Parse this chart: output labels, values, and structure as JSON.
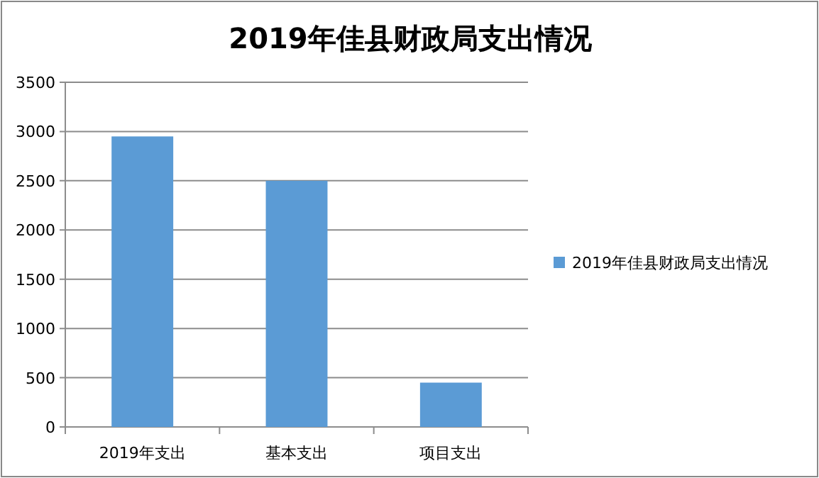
{
  "chart_data": {
    "type": "bar",
    "title": "2019年佳县财政局支出情况",
    "categories": [
      "2019年支出",
      "基本支出",
      "项目支出"
    ],
    "series": [
      {
        "name": "2019年佳县财政局支出情况",
        "color": "#5b9bd5",
        "values": [
          2950,
          2500,
          450
        ]
      }
    ],
    "ylim": [
      0,
      3500
    ],
    "yticks": [
      0,
      500,
      1000,
      1500,
      2000,
      2500,
      3000,
      3500
    ],
    "grid": "y",
    "legend": "right"
  }
}
